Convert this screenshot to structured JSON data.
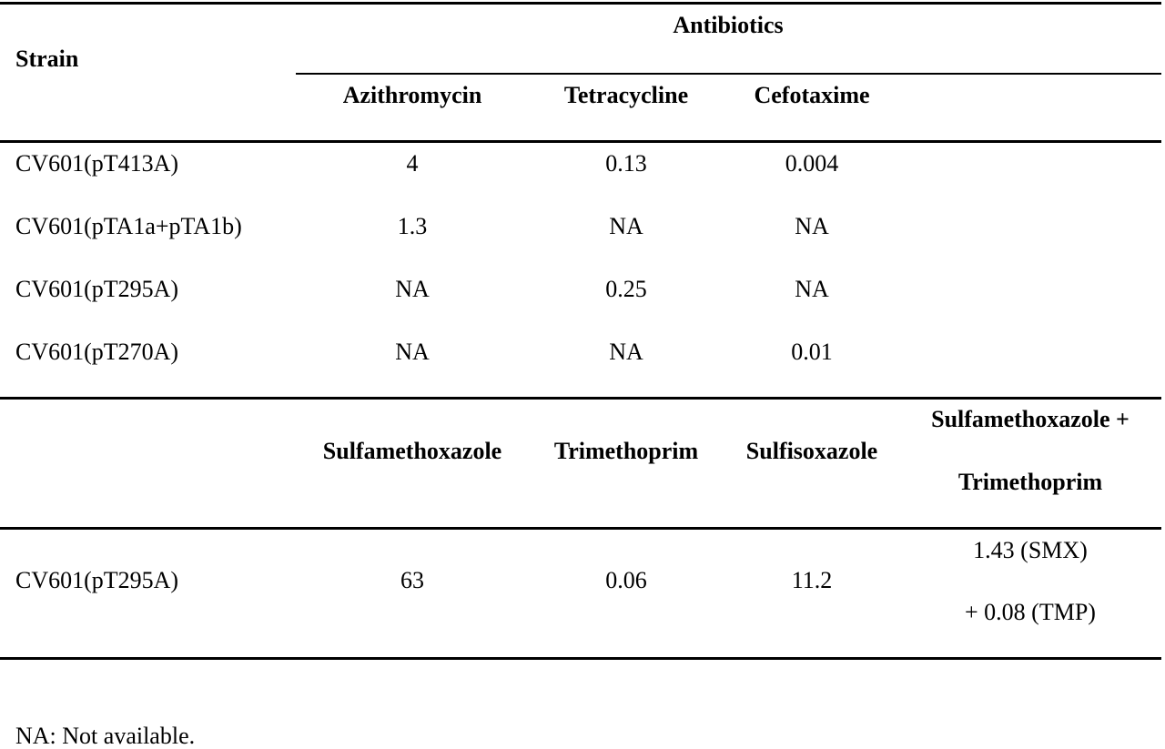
{
  "table": {
    "strain_header": "Strain",
    "group_header": "Antibiotics",
    "columns_a": [
      "Azithromycin",
      "Tetracycline",
      "Cefotaxime"
    ],
    "rows_a": [
      {
        "strain": "CV601(pT413A)",
        "values": [
          "4",
          "0.13",
          "0.004"
        ]
      },
      {
        "strain": "CV601(pTA1a+pTA1b)",
        "values": [
          "1.3",
          "NA",
          "NA"
        ]
      },
      {
        "strain": "CV601(pT295A)",
        "values": [
          "NA",
          "0.25",
          "NA"
        ]
      },
      {
        "strain": "CV601(pT270A)",
        "values": [
          "NA",
          "NA",
          "0.01"
        ]
      }
    ],
    "columns_b": [
      "Sulfamethoxazole",
      "Trimethoprim",
      "Sulfisoxazole",
      "Sulfamethoxazole +",
      "Trimethoprim"
    ],
    "row_b": {
      "strain": "CV601(pT295A)",
      "values": [
        "63",
        "0.06",
        "11.2"
      ],
      "combo_line1": "1.43 (SMX)",
      "combo_line2": "+ 0.08 (TMP)"
    }
  },
  "footnote": "NA: Not available."
}
